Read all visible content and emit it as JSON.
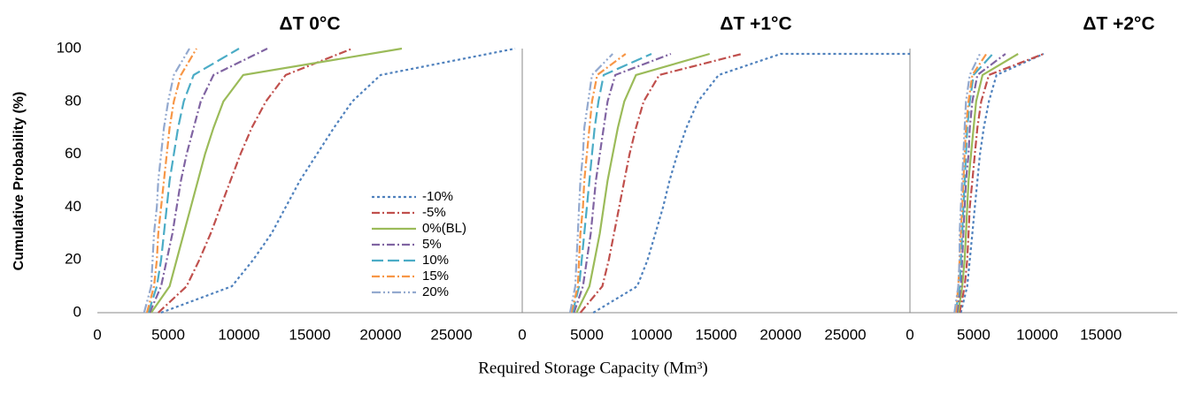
{
  "chart_data": [
    {
      "type": "line",
      "title": "ΔT 0°C",
      "ylabel": "Cumulative Probability (%)",
      "xlabel": "Required Storage Capacity (Mm³)",
      "legend": "inside",
      "xlim": [
        0,
        30000
      ],
      "xticks": [
        0,
        5000,
        10000,
        15000,
        20000,
        25000
      ],
      "ylim": [
        0,
        100
      ],
      "yticks": [
        0,
        20,
        40,
        60,
        80,
        100
      ],
      "series": [
        {
          "name": "-10%",
          "color": "#4f81bd",
          "style": "dotted",
          "x": [
            4500,
            9500,
            11000,
            12300,
            13300,
            14300,
            15500,
            16700,
            18000,
            20000,
            29500
          ],
          "values": [
            0,
            10,
            20,
            30,
            40,
            50,
            60,
            70,
            80,
            90,
            100
          ]
        },
        {
          "name": "-5%",
          "color": "#c0504d",
          "style": "dash-dot",
          "x": [
            4300,
            6300,
            7200,
            8000,
            8700,
            9400,
            10100,
            10900,
            11900,
            13300,
            18000
          ],
          "values": [
            0,
            10,
            20,
            30,
            40,
            50,
            60,
            70,
            80,
            90,
            100
          ]
        },
        {
          "name": "0%(BL)",
          "color": "#9bbb59",
          "style": "solid",
          "x": [
            3800,
            5100,
            5600,
            6100,
            6600,
            7100,
            7600,
            8200,
            8900,
            10300,
            21500
          ],
          "values": [
            0,
            10,
            20,
            30,
            40,
            50,
            60,
            70,
            80,
            90,
            100
          ]
        },
        {
          "name": "5%",
          "color": "#8064a2",
          "style": "dash-dot",
          "x": [
            3700,
            4500,
            4900,
            5300,
            5600,
            5900,
            6300,
            6800,
            7300,
            8200,
            12000
          ],
          "values": [
            0,
            10,
            20,
            30,
            40,
            50,
            60,
            70,
            80,
            90,
            100
          ]
        },
        {
          "name": "10%",
          "color": "#4bacc6",
          "style": "long-dash",
          "x": [
            3600,
            4200,
            4500,
            4700,
            4900,
            5100,
            5400,
            5700,
            6100,
            6800,
            10000
          ],
          "values": [
            0,
            10,
            20,
            30,
            40,
            50,
            60,
            70,
            80,
            90,
            100
          ]
        },
        {
          "name": "15%",
          "color": "#f79646",
          "style": "dash-dot",
          "x": [
            3500,
            4000,
            4200,
            4300,
            4500,
            4700,
            4900,
            5100,
            5400,
            5900,
            7000
          ],
          "values": [
            0,
            10,
            20,
            30,
            40,
            50,
            60,
            70,
            80,
            90,
            100
          ]
        },
        {
          "name": "20%",
          "color": "#93a9cf",
          "style": "dash-dot-dot",
          "x": [
            3300,
            3800,
            3900,
            4000,
            4200,
            4300,
            4500,
            4700,
            5000,
            5400,
            6500
          ],
          "values": [
            0,
            10,
            20,
            30,
            40,
            50,
            60,
            70,
            80,
            90,
            100
          ]
        }
      ]
    },
    {
      "type": "line",
      "title": "ΔT +1°C",
      "xlim": [
        0,
        30000
      ],
      "xticks": [
        0,
        5000,
        10000,
        15000,
        20000,
        25000
      ],
      "ylim": [
        0,
        100
      ],
      "series": [
        {
          "color": "#4f81bd",
          "style": "dotted",
          "x": [
            5500,
            8900,
            9700,
            10300,
            10900,
            11400,
            12000,
            12700,
            13600,
            15200,
            20000,
            30000
          ],
          "values": [
            0,
            10,
            20,
            30,
            40,
            50,
            60,
            70,
            80,
            90,
            98,
            98
          ]
        },
        {
          "color": "#c0504d",
          "style": "dash-dot",
          "x": [
            4500,
            6200,
            6700,
            7100,
            7500,
            7900,
            8300,
            8800,
            9400,
            10600,
            17000
          ],
          "values": [
            0,
            10,
            20,
            30,
            40,
            50,
            60,
            70,
            80,
            90,
            98
          ]
        },
        {
          "color": "#9bbb59",
          "style": "solid",
          "x": [
            4200,
            5200,
            5600,
            6000,
            6300,
            6600,
            7000,
            7400,
            7900,
            8800,
            14500
          ],
          "values": [
            0,
            10,
            20,
            30,
            40,
            50,
            60,
            70,
            80,
            90,
            98
          ]
        },
        {
          "color": "#8064a2",
          "style": "dash-dot",
          "x": [
            4000,
            4700,
            5000,
            5300,
            5500,
            5700,
            6000,
            6300,
            6600,
            7200,
            11500
          ],
          "values": [
            0,
            10,
            20,
            30,
            40,
            50,
            60,
            70,
            80,
            90,
            98
          ]
        },
        {
          "color": "#4bacc6",
          "style": "long-dash",
          "x": [
            3900,
            4400,
            4600,
            4800,
            5000,
            5200,
            5400,
            5600,
            5900,
            6300,
            10000
          ],
          "values": [
            0,
            10,
            20,
            30,
            40,
            50,
            60,
            70,
            80,
            90,
            98
          ]
        },
        {
          "color": "#f79646",
          "style": "dash-dot",
          "x": [
            3800,
            4300,
            4400,
            4500,
            4700,
            4800,
            5000,
            5200,
            5400,
            5800,
            8000
          ],
          "values": [
            0,
            10,
            20,
            30,
            40,
            50,
            60,
            70,
            80,
            90,
            98
          ]
        },
        {
          "color": "#93a9cf",
          "style": "dash-dot-dot",
          "x": [
            3700,
            4100,
            4200,
            4300,
            4400,
            4500,
            4700,
            4800,
            5100,
            5400,
            7000
          ],
          "values": [
            0,
            10,
            20,
            30,
            40,
            50,
            60,
            70,
            80,
            90,
            98
          ]
        }
      ]
    },
    {
      "type": "line",
      "title": "ΔT +2°C",
      "xlim": [
        0,
        21000
      ],
      "xticks": [
        0,
        5000,
        10000,
        15000
      ],
      "ylim": [
        0,
        100
      ],
      "series": [
        {
          "color": "#4f81bd",
          "style": "dotted",
          "x": [
            4000,
            4500,
            4700,
            4900,
            5100,
            5300,
            5500,
            5800,
            6200,
            6800,
            10500
          ],
          "values": [
            0,
            10,
            20,
            30,
            40,
            50,
            60,
            70,
            80,
            90,
            98
          ]
        },
        {
          "color": "#c0504d",
          "style": "dash-dot",
          "x": [
            3900,
            4300,
            4500,
            4600,
            4700,
            4900,
            5100,
            5300,
            5600,
            6200,
            10500
          ],
          "values": [
            0,
            10,
            20,
            30,
            40,
            50,
            60,
            70,
            80,
            90,
            98
          ]
        },
        {
          "color": "#9bbb59",
          "style": "solid",
          "x": [
            3800,
            4100,
            4300,
            4400,
            4500,
            4600,
            4800,
            5000,
            5200,
            5700,
            8500
          ],
          "values": [
            0,
            10,
            20,
            30,
            40,
            50,
            60,
            70,
            80,
            90,
            98
          ]
        },
        {
          "color": "#8064a2",
          "style": "dash-dot",
          "x": [
            3700,
            4000,
            4100,
            4200,
            4300,
            4400,
            4600,
            4700,
            4900,
            5300,
            7500
          ],
          "values": [
            0,
            10,
            20,
            30,
            40,
            50,
            60,
            70,
            80,
            90,
            98
          ]
        },
        {
          "color": "#4bacc6",
          "style": "long-dash",
          "x": [
            3600,
            3900,
            4000,
            4100,
            4200,
            4300,
            4400,
            4500,
            4700,
            5000,
            6500
          ],
          "values": [
            0,
            10,
            20,
            30,
            40,
            50,
            60,
            70,
            80,
            90,
            98
          ]
        },
        {
          "color": "#f79646",
          "style": "dash-dot",
          "x": [
            3600,
            3800,
            3900,
            4000,
            4100,
            4200,
            4300,
            4400,
            4600,
            4900,
            6000
          ],
          "values": [
            0,
            10,
            20,
            30,
            40,
            50,
            60,
            70,
            80,
            90,
            98
          ]
        },
        {
          "color": "#93a9cf",
          "style": "dash-dot-dot",
          "x": [
            3500,
            3800,
            3900,
            3900,
            4000,
            4100,
            4200,
            4300,
            4400,
            4700,
            5500
          ],
          "values": [
            0,
            10,
            20,
            30,
            40,
            50,
            60,
            70,
            80,
            90,
            98
          ]
        }
      ]
    }
  ]
}
